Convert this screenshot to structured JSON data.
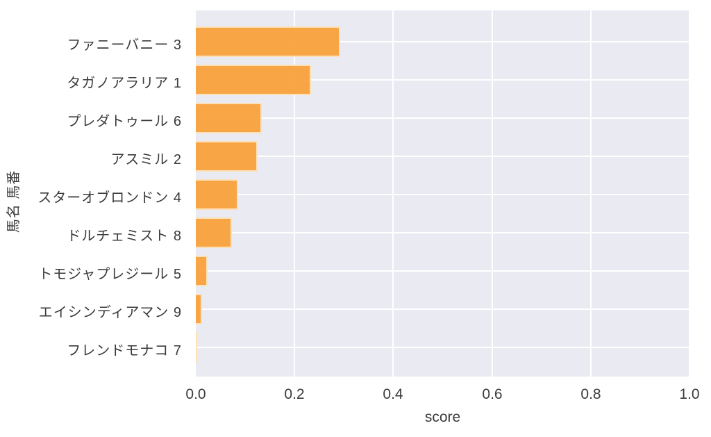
{
  "chart_data": {
    "type": "bar",
    "orientation": "horizontal",
    "title": "",
    "xlabel": "score",
    "ylabel": "馬名 馬番",
    "xlim": [
      0.0,
      1.0
    ],
    "xticks": [
      0.0,
      0.2,
      0.4,
      0.6,
      0.8,
      1.0
    ],
    "xtick_labels": [
      "0.0",
      "0.2",
      "0.4",
      "0.6",
      "0.8",
      "1.0"
    ],
    "grid": true,
    "legend_position": "none",
    "categories": [
      "ファニーバニー 3",
      "タガノアラリア 1",
      "プレダトゥール 6",
      "アスミル 2",
      "スターオブロンドン 4",
      "ドルチェミスト 8",
      "トモジャプレジール 5",
      "エイシンディアマン 9",
      "フレンドモナコ 7"
    ],
    "values": [
      0.293,
      0.233,
      0.134,
      0.125,
      0.086,
      0.073,
      0.024,
      0.013,
      0.002
    ],
    "colors": {
      "bar_fill": "#f9a03a",
      "bar_edge": "#fdebcc",
      "plot_background": "#eaeaf2",
      "gridline": "#ffffff",
      "text": "#3b3b3b",
      "page_background": "#ffffff"
    }
  }
}
